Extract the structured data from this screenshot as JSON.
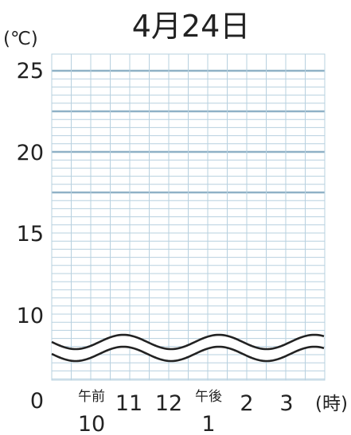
{
  "chart_data": {
    "type": "line",
    "title": "4月24日",
    "ylabel": "(℃)",
    "xlabel": "(時)",
    "x_ticks": [
      {
        "top": "午前",
        "bottom": "10"
      },
      {
        "top": "11",
        "bottom": ""
      },
      {
        "top": "12",
        "bottom": ""
      },
      {
        "top": "午後",
        "bottom": "1"
      },
      {
        "top": "2",
        "bottom": ""
      },
      {
        "top": "3",
        "bottom": ""
      }
    ],
    "y_ticks": [
      "0",
      "10",
      "15",
      "20",
      "25"
    ],
    "ylim": [
      0,
      25
    ],
    "axis_break": "wavy line between 0 and about 9",
    "grid": true,
    "series": []
  }
}
